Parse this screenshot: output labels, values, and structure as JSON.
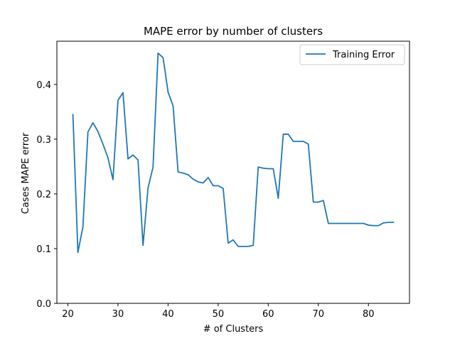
{
  "chart_data": {
    "type": "line",
    "title": "MAPE error by number of clusters",
    "xlabel": "# of Clusters",
    "ylabel": "Cases MAPE error",
    "xlim": [
      17.8,
      88.2
    ],
    "ylim": [
      0,
      0.479
    ],
    "xticks": [
      20,
      30,
      40,
      50,
      60,
      70,
      80
    ],
    "yticks": [
      0.0,
      0.1,
      0.2,
      0.3,
      0.4
    ],
    "legend": {
      "position": "upper-right"
    },
    "grid": false,
    "series": [
      {
        "name": "Training Error",
        "color": "#1f77b4",
        "x": [
          21,
          22,
          23,
          24,
          25,
          26,
          27,
          28,
          29,
          30,
          31,
          32,
          33,
          34,
          35,
          36,
          37,
          38,
          39,
          40,
          41,
          42,
          43,
          44,
          45,
          46,
          47,
          48,
          49,
          50,
          51,
          52,
          53,
          54,
          55,
          56,
          57,
          58,
          59,
          60,
          61,
          62,
          63,
          64,
          65,
          66,
          67,
          68,
          69,
          70,
          71,
          72,
          73,
          74,
          75,
          76,
          77,
          78,
          79,
          80,
          81,
          82,
          83,
          84,
          85
        ],
        "y": [
          0.345,
          0.093,
          0.14,
          0.313,
          0.33,
          0.314,
          0.291,
          0.266,
          0.226,
          0.371,
          0.385,
          0.264,
          0.271,
          0.262,
          0.106,
          0.211,
          0.249,
          0.457,
          0.449,
          0.386,
          0.361,
          0.24,
          0.238,
          0.235,
          0.227,
          0.222,
          0.22,
          0.23,
          0.215,
          0.215,
          0.21,
          0.11,
          0.116,
          0.104,
          0.104,
          0.104,
          0.106,
          0.249,
          0.247,
          0.246,
          0.246,
          0.192,
          0.309,
          0.309,
          0.296,
          0.296,
          0.296,
          0.291,
          0.185,
          0.185,
          0.188,
          0.146,
          0.146,
          0.146,
          0.146,
          0.146,
          0.146,
          0.146,
          0.146,
          0.143,
          0.142,
          0.142,
          0.147,
          0.148,
          0.148
        ]
      }
    ]
  }
}
